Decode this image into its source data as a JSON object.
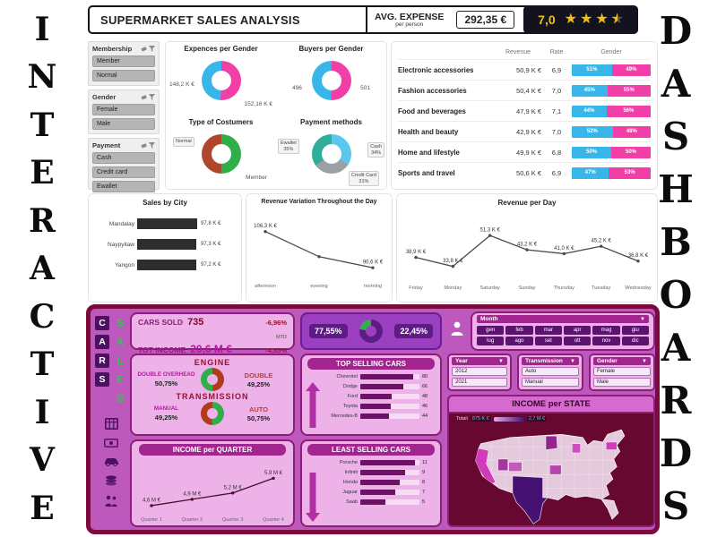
{
  "banners": {
    "left": "INTERACTIVE",
    "right": "DASHBOARDS"
  },
  "supermarket": {
    "title": "SUPERMARKET SALES ANALYSIS",
    "avg_expense": {
      "label": "AVG. EXPENSE",
      "sublabel": "per person",
      "value": "292,35 €"
    },
    "rating": {
      "value": "7,0"
    },
    "filters": [
      {
        "title": "Membership",
        "options": [
          "Member",
          "Normal"
        ]
      },
      {
        "title": "Gender",
        "options": [
          "Female",
          "Male"
        ]
      },
      {
        "title": "Payment",
        "options": [
          "Cash",
          "Credit card",
          "Ewallet"
        ]
      }
    ],
    "donut_expenses": {
      "title": "Expences per Gender",
      "type": "donut",
      "segments": [
        {
          "label": "152,16 K €",
          "value": 50.7,
          "color": "#f23fa7"
        },
        {
          "label": "148,2 K €",
          "value": 49.3,
          "color": "#38b6e9"
        }
      ]
    },
    "donut_buyers": {
      "title": "Buyers per Gender",
      "type": "donut",
      "segments": [
        {
          "label": "501",
          "value": 50.3,
          "color": "#f23fa7"
        },
        {
          "label": "496",
          "value": 49.7,
          "color": "#38b6e9"
        }
      ]
    },
    "donut_customers": {
      "title": "Type of Costumers",
      "type": "donut",
      "segments": [
        {
          "label": "Member",
          "value": 50.2,
          "color": "#2fae49"
        },
        {
          "label": "Normal",
          "value": 49.8,
          "color": "#b0472a"
        }
      ]
    },
    "donut_payment": {
      "title": "Payment methods",
      "type": "donut",
      "segments": [
        {
          "label": "Cash",
          "pct": "34%",
          "value": 34,
          "color": "#59c8ec"
        },
        {
          "label": "Credit Card",
          "pct": "31%",
          "value": 31,
          "color": "#9aa0a6"
        },
        {
          "label": "Ewallet",
          "pct": "35%",
          "value": 35,
          "color": "#2fae9b"
        }
      ]
    },
    "table": {
      "headers": [
        "Revenue",
        "Rate",
        "Gender"
      ],
      "bar_colors": {
        "male": "#38b6e9",
        "female": "#f23fa7"
      },
      "rows": [
        {
          "category": "Electronic accessories",
          "revenue": "50,9 K €",
          "rate": "6,9",
          "male": 51,
          "female": 49
        },
        {
          "category": "Fashion accessories",
          "revenue": "50,4 K €",
          "rate": "7,0",
          "male": 45,
          "female": 55
        },
        {
          "category": "Food and beverages",
          "revenue": "47,9 K €",
          "rate": "7,1",
          "male": 44,
          "female": 56
        },
        {
          "category": "Health and beauty",
          "revenue": "42,9 K €",
          "rate": "7,0",
          "male": 52,
          "female": 48
        },
        {
          "category": "Home and lifestyle",
          "revenue": "49,9 K €",
          "rate": "6,8",
          "male": 50,
          "female": 50
        },
        {
          "category": "Sports and travel",
          "revenue": "50,6 K €",
          "rate": "6,9",
          "male": 47,
          "female": 53
        }
      ]
    },
    "sales_by_city": {
      "title": "Sales by City",
      "type": "bar",
      "xmax": 100,
      "rows": [
        {
          "city": "Mandalay",
          "num": 97.8,
          "value": "97,8 K €"
        },
        {
          "city": "Naypyitaw",
          "num": 97.3,
          "value": "97,3 K €"
        },
        {
          "city": "Yangon",
          "num": 97.2,
          "value": "97,2 K €"
        }
      ]
    },
    "revenue_daypart": {
      "title": "Revenue Variation Throughout the Day",
      "type": "line",
      "color": "#4a4a4a",
      "ylim": [
        86,
        112
      ],
      "categories": [
        "afternoon",
        "evening",
        "morning"
      ],
      "values": [
        106.3,
        95.4,
        90.6
      ],
      "labels": [
        "106,3 K €",
        "",
        "90,6 K €"
      ]
    },
    "revenue_day": {
      "title": "Revenue per Day",
      "type": "line",
      "color": "#4a4a4a",
      "ylim": [
        26,
        60
      ],
      "categories": [
        "Friday",
        "Monday",
        "Saturday",
        "Sunday",
        "Thursday",
        "Tuesday",
        "Wednesday"
      ],
      "values": [
        38.9,
        33.8,
        51.3,
        43.2,
        41.0,
        45.2,
        36.8
      ],
      "labels": [
        "38,9 K €",
        "33,8 K €",
        "51,3 K €",
        "43,2 K €",
        "41,0 K €",
        "45,2 K €",
        "36,8 K €"
      ]
    }
  },
  "cars": {
    "vertical_top": "CARS",
    "vertical_bottom": "SALES",
    "kpi": {
      "sold_label": "CARS SOLD",
      "sold_value": "735",
      "sold_delta": "-6,96%",
      "sold_period": "MTD",
      "income_label": "TOT INCOME",
      "income_value": "20,6 M €",
      "income_delta": "-4,85%",
      "income_period": "MTD"
    },
    "gauge": {
      "left": "77,55%",
      "right": "22,45%",
      "segments": [
        {
          "value": 77.55,
          "color": "#5e1b86"
        },
        {
          "value": 22.45,
          "color": "#2fae49"
        }
      ]
    },
    "month_filter": {
      "title": "Month",
      "options": [
        "gen",
        "feb",
        "mar",
        "apr",
        "mag",
        "giu",
        "lug",
        "ago",
        "set",
        "ott",
        "nov",
        "dic"
      ]
    },
    "engine": {
      "title": "ENGINE",
      "left_label": "DOUBLE OVERHEAD",
      "left_value": "50,75%",
      "right_label": "DOUBLE",
      "right_value": "49,25%",
      "segments": [
        {
          "value": 49.25,
          "color": "#b23a1e"
        },
        {
          "value": 50.75,
          "color": "#2fae49"
        }
      ]
    },
    "transmission": {
      "title": "TRANSMISSION",
      "left_label": "MANUAL",
      "left_value": "49,25%",
      "right_label": "AUTO",
      "right_value": "50,75%",
      "segments": [
        {
          "value": 50.75,
          "color": "#2fae49"
        },
        {
          "value": 49.25,
          "color": "#b23a1e"
        }
      ]
    },
    "top_selling": {
      "title": "TOP SELLING CARS",
      "type": "bar",
      "xmax": 90,
      "rows": [
        {
          "label": "Chevrolet",
          "value": 80
        },
        {
          "label": "Dodge",
          "value": 66
        },
        {
          "label": "Ford",
          "value": 48
        },
        {
          "label": "Toyota",
          "value": 46
        },
        {
          "label": "Mercedes-B",
          "value": 44
        }
      ]
    },
    "least_selling": {
      "title": "LEAST SELLING CARS",
      "type": "bar",
      "xmax": 12,
      "rows": [
        {
          "label": "Porsche",
          "value": 11
        },
        {
          "label": "Infiniti",
          "value": 9
        },
        {
          "label": "Honda",
          "value": 8
        },
        {
          "label": "Jaguar",
          "value": 7
        },
        {
          "label": "Saab",
          "value": 5
        }
      ]
    },
    "income_quarter": {
      "title": "INCOME per QUARTER",
      "type": "line",
      "color": "#4a0e2e",
      "ylim": [
        4.3,
        6.3
      ],
      "categories": [
        "Quarter 1",
        "Quarter 2",
        "Quarter 3",
        "Quarter 4"
      ],
      "values": [
        4.6,
        4.9,
        5.2,
        5.9
      ],
      "labels": [
        "4,6 M €",
        "4,9 M €",
        "5,2 M €",
        "5,9 M €"
      ]
    },
    "year_filter": {
      "title": "Year",
      "options": [
        "2012",
        "2021"
      ]
    },
    "transmission_filter": {
      "title": "Transmission",
      "options": [
        "Auto",
        "Manual"
      ]
    },
    "gender_filter": {
      "title": "Gender",
      "options": [
        "Female",
        "Male"
      ]
    },
    "income_state": {
      "title": "INCOME per STATE",
      "legend_label": "Totali",
      "legend_min": "875 K €",
      "legend_max": "2,7 M €"
    }
  }
}
